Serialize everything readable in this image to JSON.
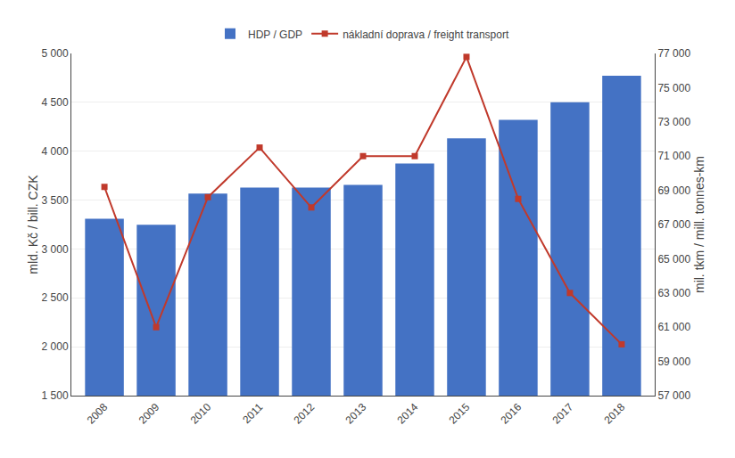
{
  "chart_data": {
    "type": "bar",
    "categories": [
      "2008",
      "2009",
      "2010",
      "2011",
      "2012",
      "2013",
      "2014",
      "2015",
      "2016",
      "2017",
      "2018"
    ],
    "series": [
      {
        "name": "HDP / GDP",
        "type": "bar",
        "axis": "y",
        "color": "#4472C4",
        "values": [
          3310,
          3247,
          3567,
          3628,
          3628,
          3655,
          3875,
          4131,
          4320,
          4501,
          4773
        ]
      },
      {
        "name": "nákladní doprava / freight transport",
        "type": "line",
        "axis": "y2",
        "color": "#C0392B",
        "marker": "square",
        "line_style": "solid",
        "values": [
          69200,
          61000,
          68600,
          71500,
          68000,
          71000,
          71000,
          76800,
          68500,
          63000,
          60000
        ]
      }
    ],
    "ylabel": "mld. Kč / bill. CZK",
    "y2label": "mil. tkm / mill. tonnes-km",
    "ylim": [
      1500,
      5000
    ],
    "yticks": [
      {
        "value": 1500,
        "label": "1 500"
      },
      {
        "value": 2000,
        "label": "2 000"
      },
      {
        "value": 2500,
        "label": "2 500"
      },
      {
        "value": 3000,
        "label": "3 000"
      },
      {
        "value": 3500,
        "label": "3 500"
      },
      {
        "value": 4000,
        "label": "4 000"
      },
      {
        "value": 4500,
        "label": "4 500"
      },
      {
        "value": 5000,
        "label": "5 000"
      }
    ],
    "y2lim": [
      57000,
      77000
    ],
    "y2ticks": [
      {
        "value": 57000,
        "label": "57 000"
      },
      {
        "value": 59000,
        "label": "59 000"
      },
      {
        "value": 61000,
        "label": "61 000"
      },
      {
        "value": 63000,
        "label": "63 000"
      },
      {
        "value": 65000,
        "label": "65 000"
      },
      {
        "value": 67000,
        "label": "67 000"
      },
      {
        "value": 69000,
        "label": "69 000"
      },
      {
        "value": 71000,
        "label": "71 000"
      },
      {
        "value": 73000,
        "label": "73 000"
      },
      {
        "value": 75000,
        "label": "75 000"
      },
      {
        "value": 77000,
        "label": "77 000"
      }
    ],
    "grid": true,
    "legend": "top"
  }
}
